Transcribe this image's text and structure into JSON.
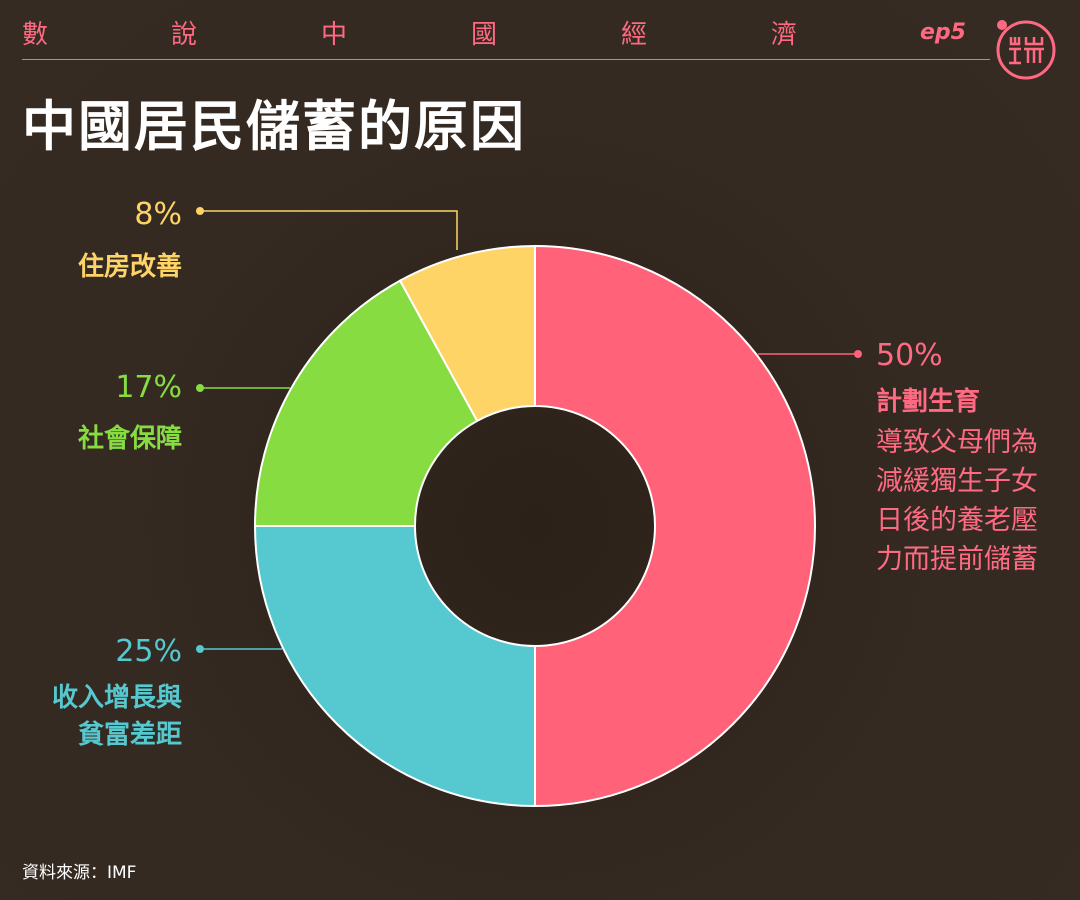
{
  "header": {
    "series_chars": [
      "數",
      "說",
      "中",
      "國",
      "經",
      "濟"
    ],
    "episode": "ep5",
    "logo_icon": "duan-logo-icon",
    "accent_color": "#ff6a82"
  },
  "title": "中國居民儲蓄的原因",
  "source": "資料來源：IMF",
  "chart_data": {
    "type": "pie",
    "title": "中國居民儲蓄的原因",
    "donut": true,
    "slices": [
      {
        "label": "計劃生育",
        "value": 50,
        "value_label": "50%",
        "color": "#ff6279",
        "description": [
          "導致父母們為",
          "減緩獨生子女",
          "日後的養老壓",
          "力而提前儲蓄"
        ]
      },
      {
        "label_lines": [
          "收入增長與",
          "貧富差距"
        ],
        "value": 25,
        "value_label": "25%",
        "color": "#56c8d0"
      },
      {
        "label": "社會保障",
        "value": 17,
        "value_label": "17%",
        "color": "#86dc41"
      },
      {
        "label": "住房改善",
        "value": 8,
        "value_label": "8%",
        "color": "#ffd466"
      }
    ]
  }
}
